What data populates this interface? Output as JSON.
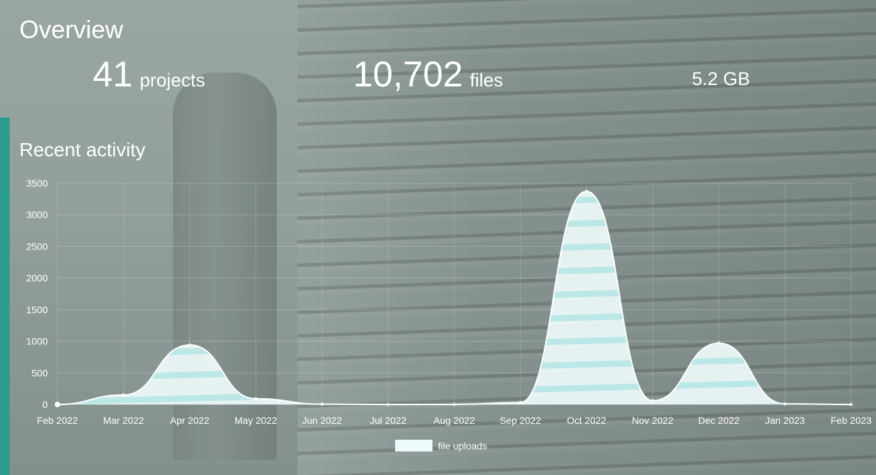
{
  "overview": {
    "title": "Overview",
    "stats": {
      "projects_value": "41",
      "projects_label": "projects",
      "files_value": "10,702",
      "files_label": "files",
      "size_value": "5.2 GB"
    }
  },
  "recent_activity": {
    "title": "Recent activity"
  },
  "colors": {
    "accent_bar": "#2a9d90",
    "area_fill": "#eefafa",
    "area_stripe": "#bfeeee"
  },
  "chart_data": {
    "type": "area",
    "title": "",
    "xlabel": "",
    "ylabel": "",
    "x": [
      "Feb 2022",
      "Mar 2022",
      "Apr 2022",
      "May 2022",
      "Jun 2022",
      "Jul 2022",
      "Aug 2022",
      "Sep 2022",
      "Oct 2022",
      "Nov 2022",
      "Dec 2022",
      "Jan 2023",
      "Feb 2023"
    ],
    "series": [
      {
        "name": "file uploads",
        "values": [
          0,
          150,
          940,
          90,
          5,
          0,
          0,
          30,
          3370,
          60,
          970,
          10,
          0
        ]
      }
    ],
    "ylim": [
      0,
      3500
    ],
    "yticks": [
      0,
      500,
      1000,
      1500,
      2000,
      2500,
      3000,
      3500
    ],
    "grid": true,
    "legend": "bottom-center"
  }
}
